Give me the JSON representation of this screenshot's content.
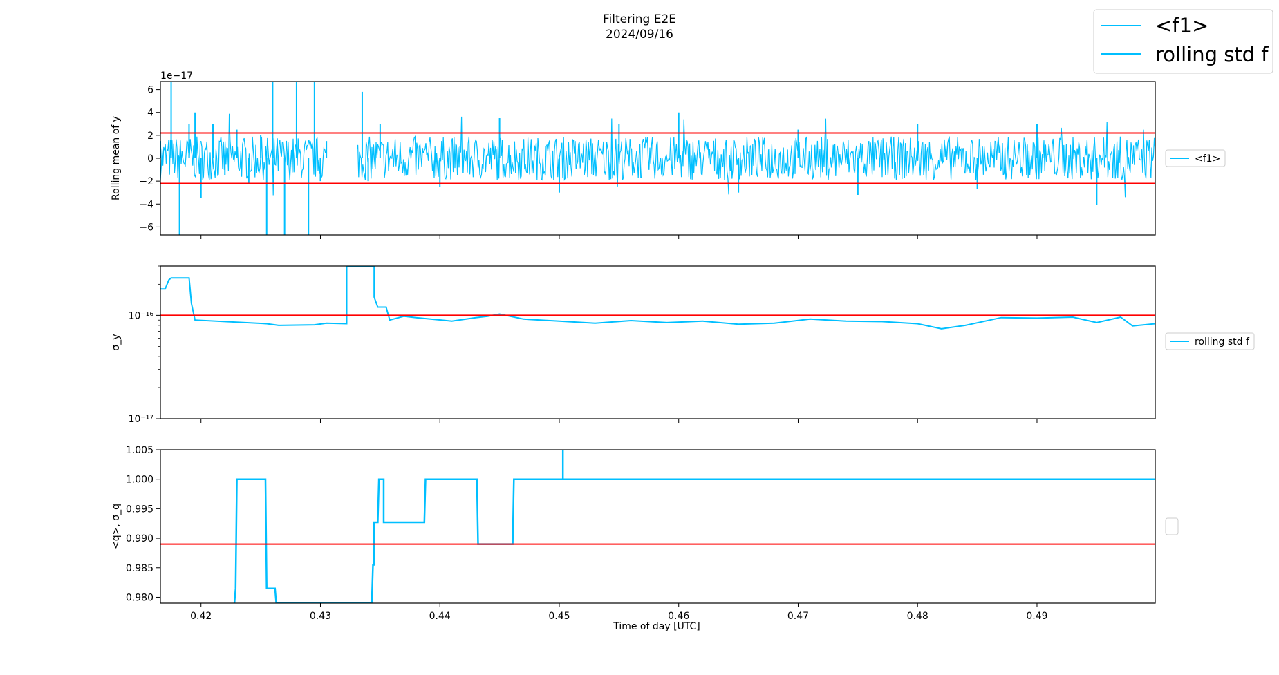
{
  "figure": {
    "title": "Filtering E2E",
    "subtitle": "2024/09/16",
    "xlabel": "Time of day [UTC]",
    "legend_entries": [
      "<f1>",
      "rolling std f"
    ],
    "legend_placement": "top-right",
    "line_color": "#00BFFF",
    "threshold_color": "#FF0000"
  },
  "chart_data": [
    {
      "type": "line",
      "title": "",
      "xlabel": "",
      "ylabel": "Rolling mean of y",
      "offset_text": "1e−17",
      "xlim": [
        0.4166,
        0.4999
      ],
      "ylim": [
        -6.7,
        6.7
      ],
      "yunit_scale": 1e-17,
      "yticks": [
        -6,
        -4,
        -2,
        0,
        2,
        4,
        6
      ],
      "ytick_labels": [
        "−6",
        "−4",
        "−2",
        "0",
        "2",
        "4",
        "6"
      ],
      "grid": false,
      "legend": {
        "entries": [
          "<f1>"
        ],
        "placement": "right"
      },
      "series": [
        {
          "name": "<f1>",
          "color": "#00BFFF",
          "description_level": "noise band approx ±2 (×1e-17), gaps 0.4305-0.4330",
          "x": [
            0.4166,
            0.4175,
            0.4182,
            0.419,
            0.4195,
            0.42,
            0.421,
            0.422,
            0.423,
            0.424,
            0.425,
            0.4255,
            0.426,
            0.427,
            0.428,
            0.429,
            0.4295,
            0.43,
            0.4305,
            0.4335,
            0.434,
            0.435,
            0.44,
            0.445,
            0.45,
            0.455,
            0.46,
            0.465,
            0.47,
            0.475,
            0.48,
            0.485,
            0.49,
            0.495,
            0.4999
          ],
          "y": [
            1.5,
            6.7,
            -6.7,
            3,
            4,
            -3.5,
            3,
            -1.5,
            2.5,
            -2.2,
            2,
            -6.7,
            6.7,
            -6.7,
            6.7,
            -6.7,
            6.7,
            -2,
            1.5,
            5.8,
            -2,
            3,
            -2.5,
            3.5,
            -3,
            3,
            4,
            -3,
            2.5,
            -3.2,
            3,
            -2.7,
            3,
            -4.1,
            2.5
          ]
        }
      ],
      "reference_lines": [
        {
          "y": 2.2,
          "color": "#FF0000"
        },
        {
          "y": -2.2,
          "color": "#FF0000"
        }
      ]
    },
    {
      "type": "line",
      "title": "",
      "xlabel": "",
      "ylabel": "σ_y",
      "xlim": [
        0.4166,
        0.4999
      ],
      "ylim": [
        1e-17,
        3e-16
      ],
      "yscale": "log",
      "yticks": [
        1e-17,
        1e-16
      ],
      "ytick_labels": [
        "10⁻¹⁷",
        "10⁻¹⁶"
      ],
      "grid": false,
      "legend": {
        "entries": [
          "rolling std f"
        ],
        "placement": "right"
      },
      "series": [
        {
          "name": "rolling std f",
          "color": "#00BFFF",
          "x": [
            0.4166,
            0.417,
            0.4173,
            0.4175,
            0.419,
            0.4192,
            0.4195,
            0.4255,
            0.4265,
            0.4295,
            0.4305,
            0.4322,
            0.4322,
            0.4345,
            0.4345,
            0.4348,
            0.4355,
            0.4358,
            0.437,
            0.438,
            0.441,
            0.443,
            0.444,
            0.445,
            0.447,
            0.45,
            0.453,
            0.456,
            0.459,
            0.462,
            0.465,
            0.468,
            0.471,
            0.474,
            0.477,
            0.48,
            0.482,
            0.484,
            0.487,
            0.49,
            0.493,
            0.495,
            0.497,
            0.498,
            0.4999
          ],
          "y": [
            1.8e-16,
            1.8e-16,
            2.2e-16,
            2.3e-16,
            2.3e-16,
            1.3e-16,
            9e-17,
            8.3e-17,
            8e-17,
            8.1e-17,
            8.4e-17,
            8.3e-17,
            3e-16,
            3e-16,
            1.5e-16,
            1.2e-16,
            1.2e-16,
            9e-17,
            9.8e-17,
            9.5e-17,
            8.8e-17,
            9.5e-17,
            9.8e-17,
            1.03e-16,
            9.2e-17,
            8.8e-17,
            8.4e-17,
            8.9e-17,
            8.5e-17,
            8.8e-17,
            8.2e-17,
            8.4e-17,
            9.2e-17,
            8.8e-17,
            8.7e-17,
            8.3e-17,
            7.4e-17,
            8e-17,
            9.5e-17,
            9.4e-17,
            9.6e-17,
            8.5e-17,
            9.6e-17,
            7.9e-17,
            8.3e-17
          ]
        }
      ],
      "reference_lines": [
        {
          "y": 1e-16,
          "color": "#FF0000"
        }
      ]
    },
    {
      "type": "line",
      "title": "",
      "xlabel": "Time of day [UTC]",
      "ylabel": "<q>, σ_q",
      "xlim": [
        0.4166,
        0.4999
      ],
      "ylim": [
        0.979,
        1.005
      ],
      "yticks": [
        0.98,
        0.985,
        0.99,
        0.995,
        1.0,
        1.005
      ],
      "ytick_labels": [
        "0.980",
        "0.985",
        "0.990",
        "0.995",
        "1.000",
        "1.005"
      ],
      "xticks": [
        0.42,
        0.43,
        0.44,
        0.45,
        0.46,
        0.47,
        0.48,
        0.49
      ],
      "xtick_labels": [
        "0.42",
        "0.43",
        "0.44",
        "0.45",
        "0.46",
        "0.47",
        "0.48",
        "0.49"
      ],
      "grid": false,
      "legend": {
        "entries": [],
        "placement": "right"
      },
      "series": [
        {
          "name": "",
          "color": "#00BFFF",
          "x": [
            0.4228,
            0.4229,
            0.4229,
            0.423,
            0.4254,
            0.4255,
            0.4257,
            0.4262,
            0.4263,
            0.4343,
            0.4344,
            0.4345,
            0.4345,
            0.4348,
            0.4349,
            0.4353,
            0.4353,
            0.4357,
            0.4357,
            0.4387,
            0.4388,
            0.4431,
            0.4432,
            0.4461,
            0.4462,
            0.4503,
            0.4503,
            0.4503,
            0.4999
          ],
          "y": [
            0.979,
            0.9815,
            0.9815,
            1.0,
            1.0,
            0.9815,
            0.9815,
            0.9815,
            0.979,
            0.979,
            0.9855,
            0.9855,
            0.9927,
            0.9927,
            1.0,
            1.0,
            0.9927,
            0.9927,
            0.9927,
            0.9927,
            1.0,
            1.0,
            0.989,
            0.989,
            1.0,
            1.0,
            1.005,
            1.0,
            1.0
          ]
        }
      ],
      "reference_lines": [
        {
          "y": 0.989,
          "color": "#FF0000"
        }
      ]
    }
  ]
}
